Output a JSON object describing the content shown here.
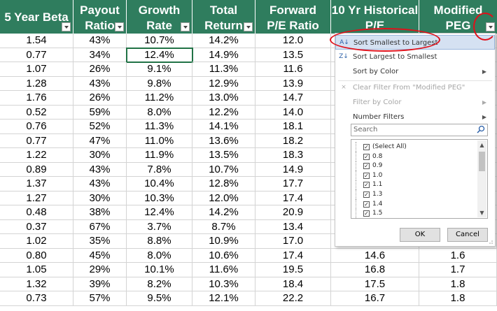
{
  "headers": [
    {
      "l1": "5 Year Beta",
      "l2": ""
    },
    {
      "l1": "Payout",
      "l2": "Ratio"
    },
    {
      "l1": "Growth",
      "l2": "Rate"
    },
    {
      "l1": "Total",
      "l2": "Return"
    },
    {
      "l1": "Forward",
      "l2": "P/E Ratio"
    },
    {
      "l1": "10 Yr Historical",
      "l2": "P/E"
    },
    {
      "l1": "Modified",
      "l2": "PEG"
    }
  ],
  "rows": [
    [
      "1.54",
      "43%",
      "10.7%",
      "14.2%",
      "12.0",
      "",
      ""
    ],
    [
      "0.77",
      "34%",
      "12.4%",
      "14.9%",
      "13.5",
      "",
      ""
    ],
    [
      "1.07",
      "26%",
      "9.1%",
      "11.3%",
      "11.6",
      "",
      ""
    ],
    [
      "1.28",
      "43%",
      "9.8%",
      "12.9%",
      "13.9",
      "",
      ""
    ],
    [
      "1.76",
      "26%",
      "11.2%",
      "13.0%",
      "14.7",
      "",
      ""
    ],
    [
      "0.52",
      "59%",
      "8.0%",
      "12.2%",
      "14.0",
      "",
      ""
    ],
    [
      "0.76",
      "52%",
      "11.3%",
      "14.1%",
      "18.1",
      "",
      ""
    ],
    [
      "0.77",
      "47%",
      "11.0%",
      "13.6%",
      "18.2",
      "",
      ""
    ],
    [
      "1.22",
      "30%",
      "11.9%",
      "13.5%",
      "18.3",
      "",
      ""
    ],
    [
      "0.89",
      "43%",
      "7.8%",
      "10.7%",
      "14.9",
      "",
      ""
    ],
    [
      "1.37",
      "43%",
      "10.4%",
      "12.8%",
      "17.7",
      "",
      ""
    ],
    [
      "1.27",
      "30%",
      "10.3%",
      "12.0%",
      "17.4",
      "",
      ""
    ],
    [
      "0.48",
      "38%",
      "12.4%",
      "14.2%",
      "20.9",
      "",
      ""
    ],
    [
      "0.37",
      "67%",
      "3.7%",
      "8.7%",
      "13.4",
      "",
      ""
    ],
    [
      "1.02",
      "35%",
      "8.8%",
      "10.9%",
      "17.0",
      "",
      ""
    ],
    [
      "0.80",
      "45%",
      "8.0%",
      "10.6%",
      "17.4",
      "14.6",
      "1.6"
    ],
    [
      "1.05",
      "29%",
      "10.1%",
      "11.6%",
      "19.5",
      "16.8",
      "1.7"
    ],
    [
      "1.32",
      "39%",
      "8.2%",
      "10.3%",
      "18.4",
      "17.5",
      "1.8"
    ],
    [
      "0.73",
      "57%",
      "9.5%",
      "12.1%",
      "22.2",
      "16.7",
      "1.8"
    ]
  ],
  "filter_menu": {
    "sort_asc": "Sort Smallest to Largest",
    "sort_desc": "Sort Largest to Smallest",
    "sort_color": "Sort by Color",
    "clear_filter": "Clear Filter From \"Modified PEG\"",
    "filter_color": "Filter by Color",
    "number_filters": "Number Filters",
    "search_placeholder": "Search",
    "values": [
      "(Select All)",
      "0.8",
      "0.9",
      "1.0",
      "1.1",
      "1.3",
      "1.4",
      "1.5"
    ],
    "ok": "OK",
    "cancel": "Cancel"
  },
  "colors": {
    "header_bg": "#2f7d5e",
    "annotation": "#e0101a",
    "highlight": "#d5e1f2"
  }
}
